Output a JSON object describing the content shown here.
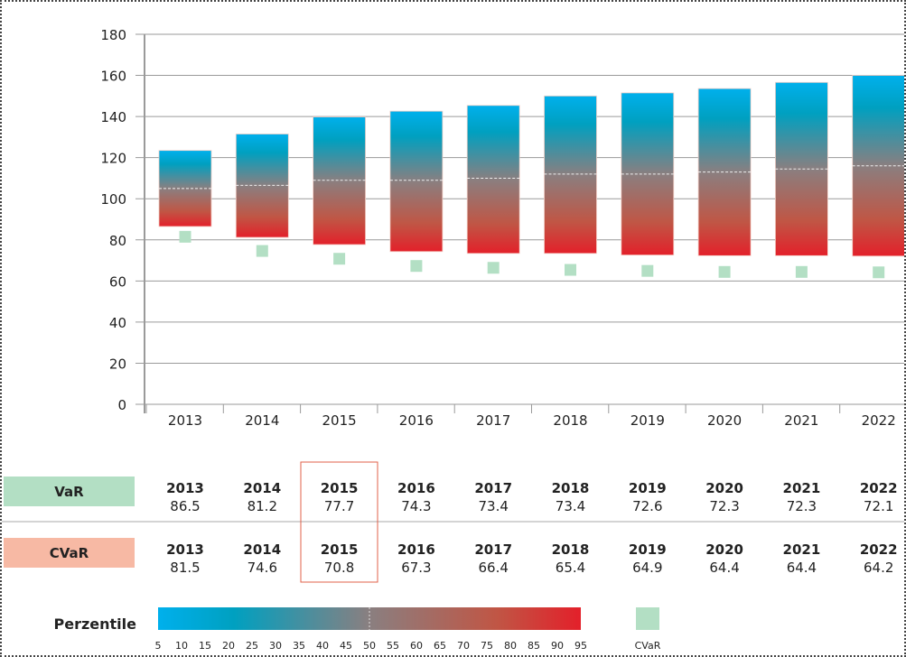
{
  "chart_data": {
    "type": "floating-bar",
    "categories": [
      "2013",
      "2014",
      "2015",
      "2016",
      "2017",
      "2018",
      "2019",
      "2020",
      "2021",
      "2022"
    ],
    "ylim": [
      0,
      180
    ],
    "yticks": [
      0,
      20,
      40,
      60,
      80,
      100,
      120,
      140,
      160,
      180
    ],
    "grid": true,
    "series": [
      {
        "name": "VaR",
        "values": [
          86.5,
          81.2,
          77.7,
          74.3,
          73.4,
          73.4,
          72.6,
          72.3,
          72.3,
          72.1
        ]
      },
      {
        "name": "CVaR",
        "values": [
          81.5,
          74.6,
          70.8,
          67.3,
          66.4,
          65.4,
          64.9,
          64.4,
          64.4,
          64.2
        ]
      }
    ],
    "top_values": [
      123.5,
      131.5,
      139.8,
      142.6,
      145.4,
      150,
      151.5,
      153.6,
      156.6,
      160
    ],
    "median_values": [
      105,
      106.5,
      109,
      109,
      110,
      112,
      112,
      113,
      114.5,
      116
    ],
    "colors": {
      "top": "#00b0ec",
      "mid": "#8a8080",
      "bottom": "#e3202a",
      "cvar": "#b3dfc4",
      "cvar_label": "#f7b9a4"
    }
  },
  "table": {
    "var_label": "VaR",
    "cvar_label": "CVaR",
    "highlight": "2015"
  },
  "legend": {
    "title": "Perzentile",
    "ticks": [
      "5",
      "10",
      "15",
      "20",
      "25",
      "30",
      "35",
      "40",
      "45",
      "50",
      "55",
      "60",
      "65",
      "70",
      "75",
      "80",
      "85",
      "90",
      "95"
    ],
    "cvar": "CVaR"
  }
}
